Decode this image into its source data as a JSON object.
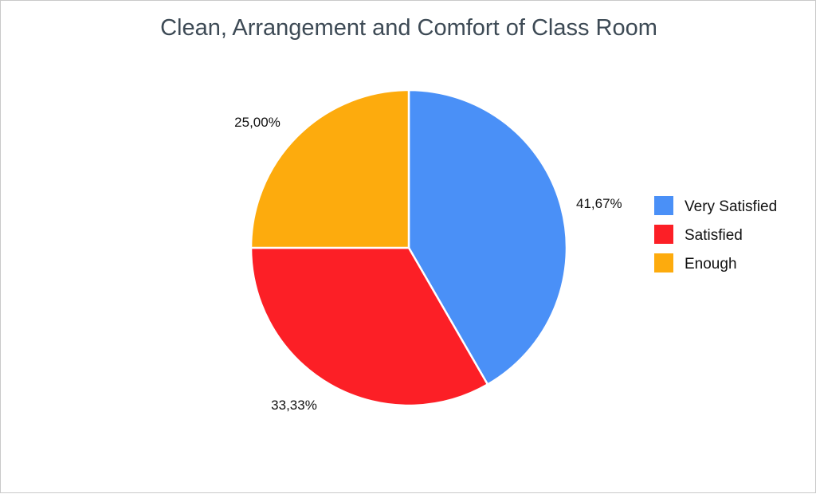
{
  "chart_data": {
    "type": "pie",
    "title": "Clean, Arrangement and Comfort of Class Room",
    "categories": [
      "Very Satisfied",
      "Satisfied",
      "Enough"
    ],
    "values": [
      41.67,
      33.33,
      25.0
    ],
    "value_labels": [
      "41,67%",
      "33,33%",
      "25,00%"
    ],
    "colors": [
      "#4a90f7",
      "#fc1f26",
      "#fdab0d"
    ],
    "legend_position": "right"
  }
}
